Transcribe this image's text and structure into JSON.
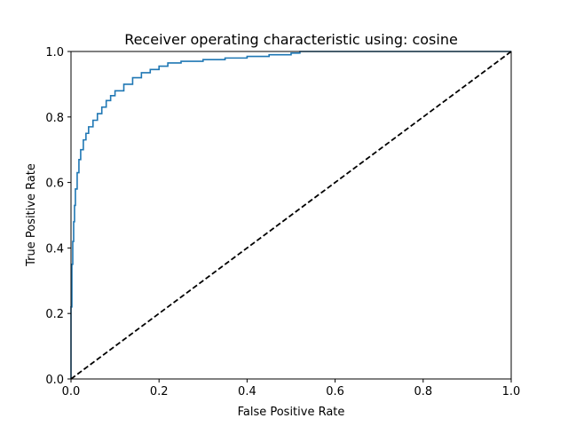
{
  "chart_data": {
    "type": "line",
    "title": "Receiver operating characteristic using: cosine",
    "xlabel": "False Positive Rate",
    "ylabel": "True Positive Rate",
    "xlim": [
      0.0,
      1.0
    ],
    "ylim": [
      0.0,
      1.0
    ],
    "xticks": [
      0.0,
      0.2,
      0.4,
      0.6,
      0.8,
      1.0
    ],
    "yticks": [
      0.0,
      0.2,
      0.4,
      0.6,
      0.8,
      1.0
    ],
    "xtick_labels": [
      "0.0",
      "0.2",
      "0.4",
      "0.6",
      "0.8",
      "1.0"
    ],
    "ytick_labels": [
      "0.0",
      "0.2",
      "0.4",
      "0.6",
      "0.8",
      "1.0"
    ],
    "grid": false,
    "series": [
      {
        "color": "#1f77b4",
        "style": "solid",
        "x": [
          0.0,
          0.0,
          0.002,
          0.004,
          0.006,
          0.008,
          0.01,
          0.014,
          0.018,
          0.022,
          0.028,
          0.034,
          0.04,
          0.05,
          0.06,
          0.07,
          0.08,
          0.09,
          0.1,
          0.12,
          0.14,
          0.16,
          0.18,
          0.2,
          0.22,
          0.25,
          0.3,
          0.35,
          0.4,
          0.45,
          0.5,
          0.52,
          0.6,
          0.8,
          1.0
        ],
        "y": [
          0.0,
          0.22,
          0.35,
          0.42,
          0.48,
          0.53,
          0.58,
          0.63,
          0.67,
          0.7,
          0.73,
          0.75,
          0.77,
          0.79,
          0.81,
          0.83,
          0.85,
          0.865,
          0.88,
          0.9,
          0.92,
          0.935,
          0.945,
          0.955,
          0.965,
          0.97,
          0.975,
          0.98,
          0.985,
          0.99,
          0.995,
          1.0,
          1.0,
          1.0,
          1.0
        ]
      },
      {
        "color": "#000000",
        "style": "dashed",
        "x": [
          0.0,
          1.0
        ],
        "y": [
          0.0,
          1.0
        ]
      }
    ]
  }
}
